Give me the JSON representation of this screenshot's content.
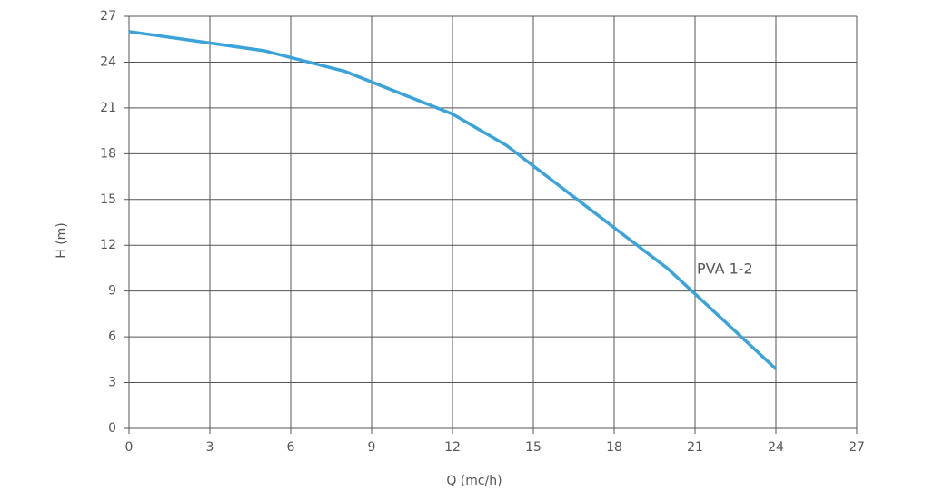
{
  "chart_data": {
    "type": "line",
    "x_label": "Q (mc/h)",
    "y_label": "H (m)",
    "x": [
      0,
      5,
      8,
      12,
      14,
      20,
      24
    ],
    "series": [
      {
        "name": "PVA 1-2",
        "color": "#3aa3d9",
        "values": [
          26.0,
          24.75,
          23.4,
          20.6,
          18.55,
          10.45,
          3.9
        ]
      }
    ],
    "xlim": [
      0,
      27
    ],
    "xticks": [
      0,
      3,
      6,
      9,
      12,
      15,
      18,
      21,
      24,
      27
    ],
    "ylim": [
      0,
      27
    ],
    "yticks": [
      0,
      3,
      6,
      9,
      12,
      15,
      18,
      21,
      24,
      27
    ],
    "grid": true
  }
}
